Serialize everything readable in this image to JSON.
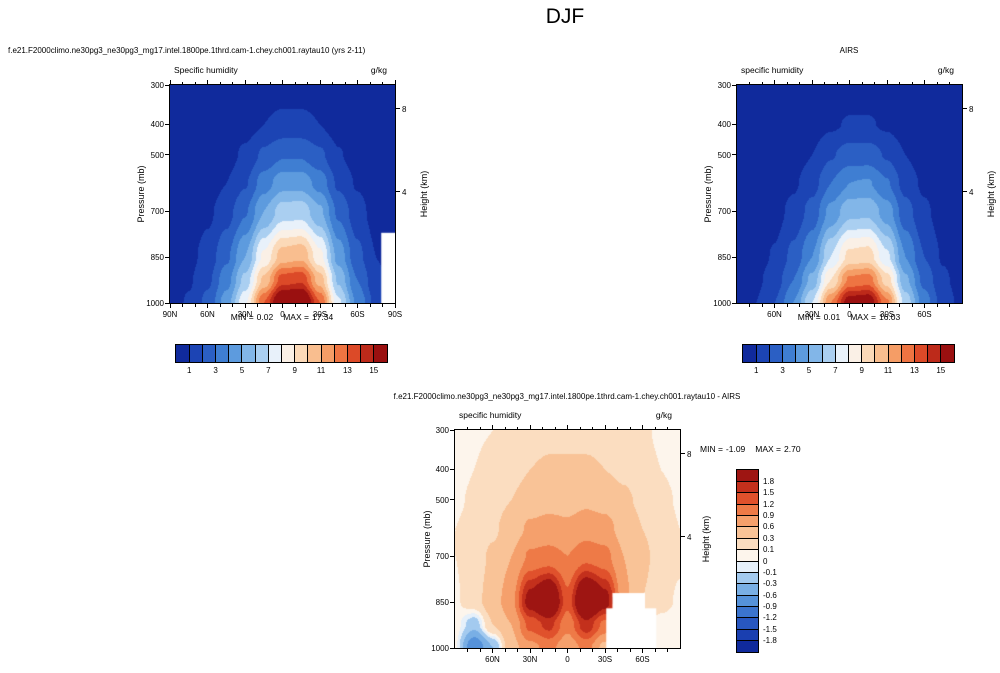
{
  "figure_title": "DJF",
  "chart_data": [
    {
      "id": "model",
      "type": "filled-contour",
      "caption": "f.e21.F2000climo.ne30pg3_ne30pg3_mg17.intel.1800pe.1thrd.cam-1.chey.ch001.raytau10 (yrs 2-11)",
      "title": "Specific humidity",
      "units": "g/kg",
      "ylabel": "Pressure (mb)",
      "ylabel_right": "Height (km)",
      "stats": {
        "min_label": "MIN =",
        "min": "0.02",
        "max_label": "MAX =",
        "max": "17.34"
      },
      "xlim": [
        90,
        -90
      ],
      "ylim": [
        300,
        1000
      ],
      "x_ticks": [
        {
          "label": "90N",
          "lat": 90
        },
        {
          "label": "60N",
          "lat": 60
        },
        {
          "label": "30N",
          "lat": 30
        },
        {
          "label": "0",
          "lat": 0
        },
        {
          "label": "30S",
          "lat": -30
        },
        {
          "label": "60S",
          "lat": -60
        },
        {
          "label": "90S",
          "lat": -90
        }
      ],
      "y_ticks": [
        {
          "label": "300",
          "p": 300
        },
        {
          "label": "400",
          "p": 400
        },
        {
          "label": "500",
          "p": 500
        },
        {
          "label": "700",
          "p": 700
        },
        {
          "label": "850",
          "p": 850
        },
        {
          "label": "1000",
          "p": 1000
        }
      ],
      "height_ticks": [
        {
          "label": "8",
          "p": 360
        },
        {
          "label": "4",
          "p": 630
        }
      ],
      "levels": [
        1,
        2,
        3,
        4,
        5,
        6,
        7,
        8,
        9,
        10,
        11,
        12,
        13,
        14,
        15
      ],
      "colors": [
        "#102a9c",
        "#1c44b4",
        "#2b5fc4",
        "#3f7ed2",
        "#5d9bde",
        "#82b6e8",
        "#aacff1",
        "#e8f1fa",
        "#faf0e6",
        "#fbd9b8",
        "#f9be8f",
        "#f59d66",
        "#ee7442",
        "#dc4a28",
        "#bd2a1a",
        "#9a1010"
      ],
      "colorbar_labels": [
        {
          "label": "1",
          "level": 1
        },
        {
          "label": "3",
          "level": 3
        },
        {
          "label": "5",
          "level": 5
        },
        {
          "label": "7",
          "level": 7
        },
        {
          "label": "9",
          "level": 9
        },
        {
          "label": "11",
          "level": 11
        },
        {
          "label": "13",
          "level": 13
        },
        {
          "label": "15",
          "level": 15
        }
      ],
      "lats": [
        90,
        75,
        60,
        45,
        30,
        15,
        0,
        -15,
        -30,
        -45,
        -60,
        -75,
        -90
      ],
      "pressures": [
        300,
        400,
        500,
        600,
        700,
        850,
        925,
        1000
      ],
      "values": [
        [
          0.02,
          0.03,
          0.05,
          0.1,
          0.2,
          0.35,
          0.45,
          0.45,
          0.35,
          0.2,
          0.1,
          0.05,
          0.03
        ],
        [
          0.05,
          0.08,
          0.15,
          0.3,
          0.6,
          1.0,
          1.3,
          1.3,
          1.0,
          0.5,
          0.25,
          0.12,
          0.06
        ],
        [
          0.1,
          0.15,
          0.3,
          0.6,
          1.2,
          2.2,
          2.9,
          2.9,
          2.2,
          1.1,
          0.5,
          0.25,
          0.12
        ],
        [
          0.15,
          0.25,
          0.5,
          1.0,
          1.9,
          3.5,
          4.6,
          4.6,
          3.6,
          1.8,
          0.9,
          0.4,
          0.2
        ],
        [
          0.25,
          0.4,
          0.8,
          1.6,
          2.9,
          5.0,
          6.5,
          6.6,
          5.2,
          2.8,
          1.4,
          0.6,
          0.3
        ],
        [
          0.45,
          0.7,
          1.4,
          2.8,
          5.0,
          8.2,
          10.5,
          10.8,
          8.3,
          4.6,
          2.3,
          1.0,
          0.5
        ],
        [
          0.55,
          0.9,
          1.8,
          3.6,
          6.3,
          10.2,
          13.5,
          13.8,
          10.5,
          5.8,
          3.0,
          1.3,
          0.6
        ],
        [
          0.65,
          1.1,
          2.3,
          4.5,
          7.8,
          13.0,
          17.0,
          17.3,
          13.0,
          7.2,
          3.8,
          1.7,
          0.8
        ]
      ],
      "masked": [
        {
          "lat_from": -79,
          "lat_to": -90,
          "p_from": 770,
          "p_to": 1000
        }
      ]
    },
    {
      "id": "airs",
      "type": "filled-contour",
      "caption": "AIRS",
      "title": "specific humidity",
      "units": "g/kg",
      "ylabel": "Pressure (mb)",
      "ylabel_right": "Height (km)",
      "stats": {
        "min_label": "MIN =",
        "min": "0.01",
        "max_label": "MAX =",
        "max": "16.03"
      },
      "xlim": [
        90,
        -90
      ],
      "ylim": [
        300,
        1000
      ],
      "x_ticks": [
        {
          "label": "60N",
          "lat": 60
        },
        {
          "label": "30N",
          "lat": 30
        },
        {
          "label": "0",
          "lat": 0
        },
        {
          "label": "30S",
          "lat": -30
        },
        {
          "label": "60S",
          "lat": -60
        }
      ],
      "y_ticks": [
        {
          "label": "300",
          "p": 300
        },
        {
          "label": "400",
          "p": 400
        },
        {
          "label": "500",
          "p": 500
        },
        {
          "label": "700",
          "p": 700
        },
        {
          "label": "850",
          "p": 850
        },
        {
          "label": "1000",
          "p": 1000
        }
      ],
      "height_ticks": [
        {
          "label": "8",
          "p": 360
        },
        {
          "label": "4",
          "p": 630
        }
      ],
      "levels": [
        1,
        2,
        3,
        4,
        5,
        6,
        7,
        8,
        9,
        10,
        11,
        12,
        13,
        14,
        15
      ],
      "colors": [
        "#102a9c",
        "#1c44b4",
        "#2b5fc4",
        "#3f7ed2",
        "#5d9bde",
        "#82b6e8",
        "#aacff1",
        "#e8f1fa",
        "#faf0e6",
        "#fbd9b8",
        "#f9be8f",
        "#f59d66",
        "#ee7442",
        "#dc4a28",
        "#bd2a1a",
        "#9a1010"
      ],
      "colorbar_labels": [
        {
          "label": "1",
          "level": 1
        },
        {
          "label": "3",
          "level": 3
        },
        {
          "label": "5",
          "level": 5
        },
        {
          "label": "7",
          "level": 7
        },
        {
          "label": "9",
          "level": 9
        },
        {
          "label": "11",
          "level": 11
        },
        {
          "label": "13",
          "level": 13
        },
        {
          "label": "15",
          "level": 15
        }
      ],
      "lats": [
        90,
        75,
        60,
        45,
        30,
        15,
        0,
        -15,
        -30,
        -45,
        -60,
        -75,
        -90
      ],
      "pressures": [
        300,
        400,
        500,
        600,
        700,
        850,
        925,
        1000
      ],
      "values": [
        [
          0.02,
          0.03,
          0.05,
          0.1,
          0.18,
          0.3,
          0.4,
          0.4,
          0.3,
          0.18,
          0.1,
          0.05,
          0.03
        ],
        [
          0.05,
          0.07,
          0.13,
          0.25,
          0.5,
          0.85,
          1.1,
          1.1,
          0.85,
          0.45,
          0.22,
          0.1,
          0.05
        ],
        [
          0.08,
          0.13,
          0.25,
          0.5,
          1.0,
          1.9,
          2.5,
          2.5,
          1.9,
          1.0,
          0.45,
          0.2,
          0.1
        ],
        [
          0.12,
          0.2,
          0.4,
          0.85,
          1.6,
          3.0,
          4.0,
          4.1,
          3.1,
          1.6,
          0.8,
          0.35,
          0.17
        ],
        [
          0.2,
          0.33,
          0.65,
          1.3,
          2.4,
          4.3,
          5.7,
          5.8,
          4.5,
          2.4,
          1.2,
          0.5,
          0.25
        ],
        [
          0.4,
          0.6,
          1.1,
          2.3,
          4.0,
          7.0,
          9.3,
          9.5,
          7.2,
          4.0,
          2.0,
          0.9,
          0.45
        ],
        [
          0.5,
          0.8,
          1.5,
          3.0,
          5.3,
          9.0,
          12.2,
          12.5,
          9.5,
          5.2,
          2.7,
          1.2,
          0.55
        ],
        [
          0.6,
          1.0,
          2.0,
          4.0,
          7.0,
          12.0,
          15.7,
          16.0,
          12.2,
          6.6,
          3.5,
          1.6,
          0.7
        ]
      ],
      "masked": []
    },
    {
      "id": "diff",
      "type": "filled-contour",
      "caption": "f.e21.F2000climo.ne30pg3_ne30pg3_mg17.intel.1800pe.1thrd.cam-1.chey.ch001.raytau10 - AIRS",
      "title": "specific humidity",
      "units": "g/kg",
      "ylabel": "Pressure (mb)",
      "ylabel_right": "Height (km)",
      "stats": {
        "min_label": "MIN =",
        "min": "-1.09",
        "max_label": "MAX =",
        "max": "2.70"
      },
      "xlim": [
        90,
        -90
      ],
      "ylim": [
        300,
        1000
      ],
      "x_ticks": [
        {
          "label": "60N",
          "lat": 60
        },
        {
          "label": "30N",
          "lat": 30
        },
        {
          "label": "0",
          "lat": 0
        },
        {
          "label": "30S",
          "lat": -30
        },
        {
          "label": "60S",
          "lat": -60
        }
      ],
      "y_ticks": [
        {
          "label": "300",
          "p": 300
        },
        {
          "label": "400",
          "p": 400
        },
        {
          "label": "500",
          "p": 500
        },
        {
          "label": "700",
          "p": 700
        },
        {
          "label": "850",
          "p": 850
        },
        {
          "label": "1000",
          "p": 1000
        }
      ],
      "height_ticks": [
        {
          "label": "8",
          "p": 360
        },
        {
          "label": "4",
          "p": 630
        }
      ],
      "levels": [
        -1.8,
        -1.5,
        -1.2,
        -0.9,
        -0.6,
        -0.3,
        -0.1,
        0,
        0.1,
        0.3,
        0.6,
        0.9,
        1.2,
        1.5,
        1.8
      ],
      "colors": [
        "#102a9c",
        "#1a3fb0",
        "#2857c0",
        "#3b74ce",
        "#5592da",
        "#79afe5",
        "#a3caef",
        "#e6f0fa",
        "#fdf5ec",
        "#fbddc0",
        "#f9c397",
        "#f5a06c",
        "#ee7a47",
        "#e0512c",
        "#c3301c",
        "#9e1512"
      ],
      "colorbar_labels": [
        {
          "label": "1.8",
          "level": 1.8
        },
        {
          "label": "1.5",
          "level": 1.5
        },
        {
          "label": "1.2",
          "level": 1.2
        },
        {
          "label": "0.9",
          "level": 0.9
        },
        {
          "label": "0.6",
          "level": 0.6
        },
        {
          "label": "0.3",
          "level": 0.3
        },
        {
          "label": "0.1",
          "level": 0.1
        },
        {
          "label": "0",
          "level": 0
        },
        {
          "label": "-0.1",
          "level": -0.1
        },
        {
          "label": "-0.3",
          "level": -0.3
        },
        {
          "label": "-0.6",
          "level": -0.6
        },
        {
          "label": "-0.9",
          "level": -0.9
        },
        {
          "label": "-1.2",
          "level": -1.2
        },
        {
          "label": "-1.5",
          "level": -1.5
        },
        {
          "label": "-1.8",
          "level": -1.8
        }
      ],
      "lats": [
        90,
        75,
        60,
        45,
        30,
        15,
        0,
        -15,
        -30,
        -45,
        -60,
        -75,
        -90
      ],
      "pressures": [
        300,
        400,
        500,
        600,
        700,
        850,
        925,
        1000
      ],
      "values": [
        [
          0.05,
          0.08,
          0.1,
          0.12,
          0.15,
          0.2,
          0.2,
          0.2,
          0.18,
          0.15,
          0.12,
          0.08,
          0.05
        ],
        [
          0.06,
          0.1,
          0.15,
          0.2,
          0.3,
          0.35,
          0.35,
          0.35,
          0.3,
          0.25,
          0.15,
          0.1,
          0.06
        ],
        [
          0.08,
          0.12,
          0.2,
          0.3,
          0.45,
          0.5,
          0.5,
          0.55,
          0.5,
          0.35,
          0.25,
          0.15,
          0.08
        ],
        [
          0.1,
          0.15,
          0.25,
          0.45,
          0.65,
          0.7,
          0.65,
          0.75,
          0.7,
          0.5,
          0.3,
          0.2,
          0.1
        ],
        [
          0.1,
          0.18,
          0.35,
          0.6,
          0.95,
          1.0,
          0.9,
          1.1,
          1.0,
          0.6,
          0.35,
          0.22,
          0.12
        ],
        [
          0.08,
          0.2,
          0.45,
          0.8,
          2.0,
          2.6,
          1.3,
          2.7,
          2.0,
          0.7,
          0.3,
          0.15,
          0.08
        ],
        [
          0.05,
          -0.2,
          0.3,
          0.6,
          1.3,
          1.6,
          1.0,
          1.7,
          1.1,
          0.3,
          0.1,
          0.05,
          0.04
        ],
        [
          0.02,
          -0.9,
          -0.3,
          0.5,
          0.8,
          1.0,
          0.7,
          1.0,
          0.5,
          0.05,
          0.02,
          0.02,
          0.02
        ]
      ],
      "masked": [
        {
          "lat_from": -31,
          "lat_to": -71,
          "p_from": 870,
          "p_to": 1000
        },
        {
          "lat_from": -36,
          "lat_to": -62,
          "p_from": 820,
          "p_to": 870
        }
      ]
    }
  ]
}
